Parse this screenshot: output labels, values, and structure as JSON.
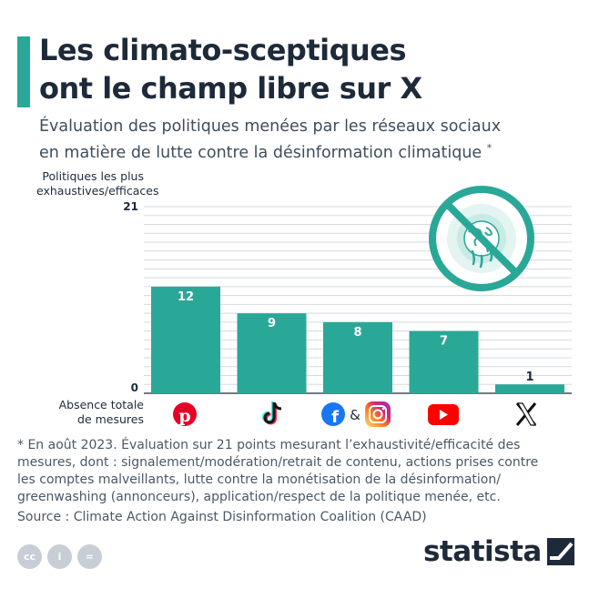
{
  "header": {
    "title_line1": "Les climato-sceptiques",
    "title_line2": "ont le champ libre sur X",
    "subtitle_line1": "Évaluation des politiques menées par les réseaux sociaux",
    "subtitle_line2": "en matière de lutte contre la désinformation climatique",
    "subtitle_mark": "*"
  },
  "axis": {
    "top_label_line1": "Politiques les plus",
    "top_label_line2": "exhaustives/efficaces",
    "bottom_label_line1": "Absence totale",
    "bottom_label_line2": "de mesures"
  },
  "chart_data": {
    "type": "bar",
    "title": "Les climato-sceptiques ont le champ libre sur X",
    "categories": [
      "Pinterest",
      "TikTok",
      "Facebook & Instagram",
      "YouTube",
      "X"
    ],
    "values": [
      12,
      9,
      8,
      7,
      1
    ],
    "ylim": [
      0,
      21
    ],
    "yticks": [
      "0",
      "21"
    ],
    "ylabel_top": "Politiques les plus exhaustives/efficaces",
    "ylabel_bottom": "Absence totale de mesures",
    "grid": true,
    "bar_color": "#2aa897",
    "amp_label": "&"
  },
  "footer": {
    "footnote_line1": "* En août 2023. Évaluation sur 21 points mesurant l’exhaustivité/efficacité des",
    "footnote_line2": "mesures, dont : signalement/modération/retrait de contenu, actions prises contre",
    "footnote_line3": "les comptes malveillants, lutte contre la monétisation de la désinformation/",
    "footnote_line4": "greenwashing (annonceurs), application/respect de la politique menée, etc.",
    "source": "Source : Climate Action Against Disinformation Coalition (CAAD)",
    "license": [
      "cc",
      "i",
      "="
    ],
    "brand": "statista"
  },
  "colors": {
    "accent": "#2aa897",
    "dark": "#1e2a3a",
    "grid": "#d5dadf",
    "pinterest": "#e60023",
    "facebook": "#1877f2",
    "youtube": "#ff0000"
  }
}
